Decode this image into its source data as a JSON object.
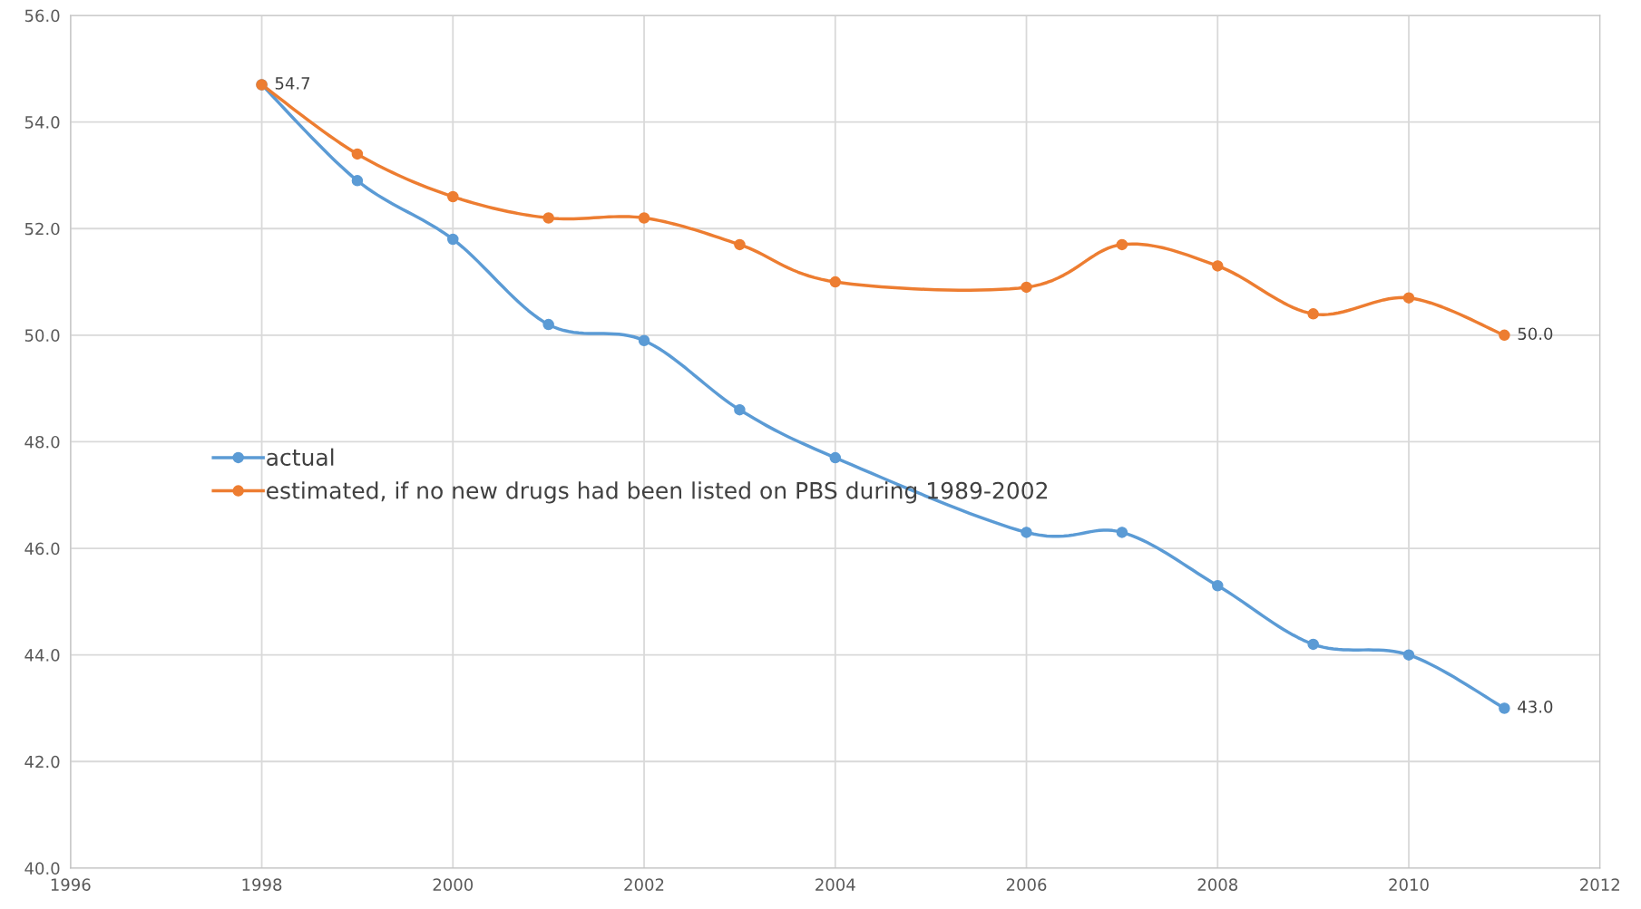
{
  "chart_data": {
    "type": "line",
    "x": [
      1998,
      1999,
      2000,
      2001,
      2002,
      2003,
      2004,
      2006,
      2007,
      2008,
      2009,
      2010,
      2011
    ],
    "series": [
      {
        "name": "actual",
        "color": "#5b9bd5",
        "values": [
          54.7,
          52.9,
          51.8,
          50.2,
          49.9,
          48.6,
          47.7,
          46.3,
          46.3,
          45.3,
          44.2,
          44.0,
          43.0
        ],
        "value_labels": [
          null,
          null,
          null,
          null,
          null,
          null,
          null,
          null,
          null,
          null,
          null,
          null,
          "43.0"
        ]
      },
      {
        "name": "estimated, if no new drugs had been listed on PBS during 1989-2002",
        "color": "#ed7d31",
        "values": [
          54.7,
          53.4,
          52.6,
          52.2,
          52.2,
          51.7,
          51.0,
          50.9,
          51.7,
          51.3,
          50.4,
          50.7,
          50.0
        ],
        "value_labels": [
          "54.7",
          null,
          null,
          null,
          null,
          null,
          null,
          null,
          null,
          null,
          null,
          null,
          "50.0"
        ]
      }
    ],
    "xlim": [
      1996,
      2012
    ],
    "xticks": [
      1996,
      1998,
      2000,
      2002,
      2004,
      2006,
      2008,
      2010,
      2012
    ],
    "ylim": [
      40,
      56
    ],
    "yticks": [
      {
        "value": 40,
        "label": "40.0"
      },
      {
        "value": 42,
        "label": "42.0"
      },
      {
        "value": 44,
        "label": "44.0"
      },
      {
        "value": 46,
        "label": "46.0"
      },
      {
        "value": 48,
        "label": "48.0"
      },
      {
        "value": 50,
        "label": "50.0"
      },
      {
        "value": 52,
        "label": "52.0"
      },
      {
        "value": 54,
        "label": "54.0"
      },
      {
        "value": 56,
        "label": "56.0"
      }
    ],
    "grid": true,
    "legend": "center left",
    "marker": "circle",
    "line_style": "solid"
  }
}
